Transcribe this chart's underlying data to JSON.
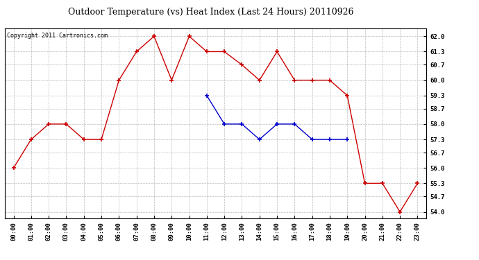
{
  "title": "Outdoor Temperature (vs) Heat Index (Last 24 Hours) 20110926",
  "copyright_text": "Copyright 2011 Cartronics.com",
  "x_labels": [
    "00:00",
    "01:00",
    "02:00",
    "03:00",
    "04:00",
    "05:00",
    "06:00",
    "07:00",
    "08:00",
    "09:00",
    "10:00",
    "11:00",
    "12:00",
    "13:00",
    "14:00",
    "15:00",
    "16:00",
    "17:00",
    "18:00",
    "19:00",
    "20:00",
    "21:00",
    "22:00",
    "23:00"
  ],
  "red_y": [
    56.0,
    57.3,
    58.0,
    58.0,
    57.3,
    57.3,
    60.0,
    61.3,
    62.0,
    60.0,
    62.0,
    61.3,
    61.3,
    60.7,
    60.0,
    61.3,
    60.0,
    60.0,
    60.0,
    59.3,
    55.3,
    55.3,
    54.0,
    55.3
  ],
  "blue_y": [
    null,
    null,
    null,
    null,
    null,
    null,
    null,
    null,
    null,
    null,
    null,
    59.3,
    58.0,
    58.0,
    57.3,
    58.0,
    58.0,
    57.3,
    57.3,
    57.3,
    null,
    null,
    null,
    null
  ],
  "red_color": "#cc0000",
  "blue_color": "#0000cc",
  "ylim_min": 53.7,
  "ylim_max": 62.35,
  "yticks": [
    54.0,
    54.7,
    55.3,
    56.0,
    56.7,
    57.3,
    58.0,
    58.7,
    59.3,
    60.0,
    60.7,
    61.3,
    62.0
  ],
  "background_color": "#ffffff",
  "plot_bg_color": "#ffffff",
  "grid_color": "#aaaaaa",
  "title_fontsize": 9,
  "copyright_fontsize": 6,
  "tick_fontsize": 6.5,
  "line_width": 1.0,
  "marker_size": 4
}
